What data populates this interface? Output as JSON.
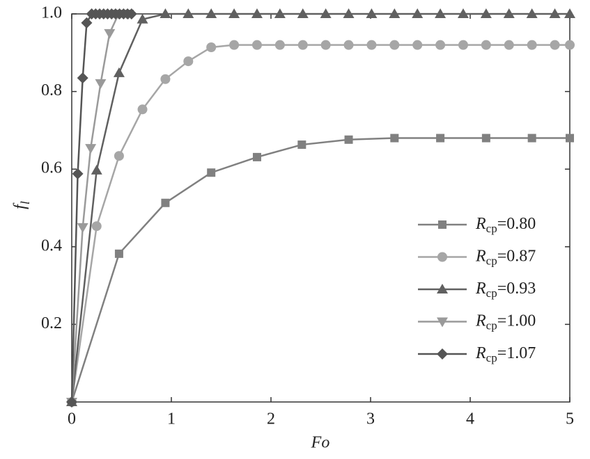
{
  "chart_data": {
    "type": "line",
    "xlabel": "Fo",
    "ylabel": "fl",
    "xlim": [
      0,
      5
    ],
    "ylim": [
      0,
      1
    ],
    "xticks": [
      0,
      1,
      2,
      3,
      4,
      5
    ],
    "yticks": [
      0.2,
      0.4,
      0.6,
      0.8,
      {
        "value": 1,
        "label": "1.0"
      }
    ],
    "legend": "right",
    "series": [
      {
        "name": "Rcp=0.80",
        "color": "#808080",
        "marker": "square",
        "x": [
          0,
          0.475,
          0.94,
          1.4,
          1.86,
          2.31,
          2.78,
          3.24,
          3.7,
          4.16,
          4.62,
          5.0
        ],
        "values": [
          0,
          0.382,
          0.513,
          0.591,
          0.631,
          0.663,
          0.676,
          0.68,
          0.68,
          0.68,
          0.68,
          0.68
        ]
      },
      {
        "name": "Rcp=0.87",
        "color": "#a6a6a6",
        "marker": "circle",
        "x": [
          0,
          0.25,
          0.475,
          0.71,
          0.94,
          1.17,
          1.4,
          1.63,
          1.86,
          2.09,
          2.32,
          2.55,
          2.78,
          3.01,
          3.24,
          3.47,
          3.7,
          3.93,
          4.16,
          4.39,
          4.62,
          4.85,
          5.0
        ],
        "values": [
          0,
          0.453,
          0.634,
          0.754,
          0.832,
          0.878,
          0.914,
          0.92,
          0.92,
          0.92,
          0.92,
          0.92,
          0.92,
          0.92,
          0.92,
          0.92,
          0.92,
          0.92,
          0.92,
          0.92,
          0.92,
          0.92,
          0.92
        ]
      },
      {
        "name": "Rcp=0.93",
        "color": "#606060",
        "marker": "triangle",
        "x": [
          0,
          0.25,
          0.475,
          0.71,
          0.94,
          1.17,
          1.4,
          1.63,
          1.86,
          2.09,
          2.32,
          2.55,
          2.78,
          3.01,
          3.24,
          3.47,
          3.7,
          3.93,
          4.16,
          4.39,
          4.62,
          4.85,
          5.0
        ],
        "values": [
          0,
          0.597,
          0.848,
          0.986,
          1,
          1,
          1,
          1,
          1,
          1,
          1,
          1,
          1,
          1,
          1,
          1,
          1,
          1,
          1,
          1,
          1,
          1,
          1
        ]
      },
      {
        "name": "Rcp=1.00",
        "color": "#9a9a9a",
        "marker": "triangle-down",
        "x": [
          0,
          0.11,
          0.19,
          0.29,
          0.38,
          0.47,
          0.57
        ],
        "values": [
          0,
          0.45,
          0.654,
          0.821,
          0.95,
          1,
          1
        ]
      },
      {
        "name": "Rcp=1.07",
        "color": "#555555",
        "marker": "diamond",
        "x": [
          0,
          0.06,
          0.11,
          0.15,
          0.2,
          0.24,
          0.28,
          0.32,
          0.36,
          0.4,
          0.44,
          0.48,
          0.52,
          0.56,
          0.6
        ],
        "values": [
          0,
          0.588,
          0.835,
          0.977,
          1,
          1,
          1,
          1,
          1,
          1,
          1,
          1,
          1,
          1,
          1
        ]
      }
    ]
  }
}
